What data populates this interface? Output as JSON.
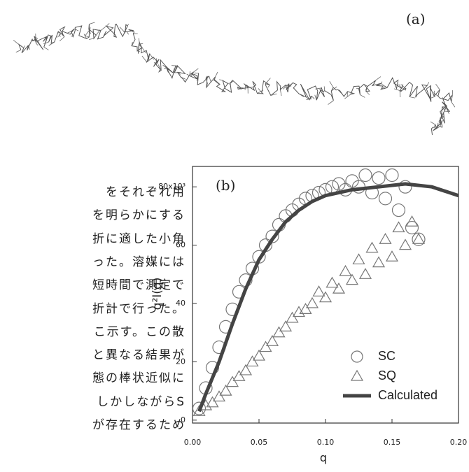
{
  "figure": {
    "panel_a": "(a)"
  },
  "text_lines": [
    "をそれぞれ用",
    "を明らかにする",
    "折に適した小角",
    "った。溶媒には",
    "短時間で測定で",
    "折計で行った。",
    "こ示す。この散",
    "と異なる結果が",
    "態の棒状近似に",
    "しかしながらS",
    "が存在するため"
  ],
  "chart_data": {
    "type": "scatter",
    "panel_label": "(b)",
    "x_label": "q",
    "y_label": "q²I(q)",
    "xlim": [
      0,
      0.2
    ],
    "ylim": [
      -1,
      87
    ],
    "xticks": [
      {
        "value": 0,
        "label": "0.00"
      },
      0.05,
      {
        "value": 0.1,
        "label": "0.10"
      },
      0.15,
      {
        "value": 0.2,
        "label": "0.20"
      }
    ],
    "yticks": [
      0,
      20,
      40,
      60,
      {
        "value": 80,
        "label": "80x10³"
      }
    ],
    "legend": "lower right",
    "series": [
      {
        "name": "SC",
        "marker": "circle",
        "color": "#777",
        "x": [
          0.005,
          0.01,
          0.015,
          0.02,
          0.025,
          0.03,
          0.035,
          0.04,
          0.045,
          0.05,
          0.055,
          0.06,
          0.065,
          0.07,
          0.075,
          0.08,
          0.085,
          0.09,
          0.095,
          0.1,
          0.105,
          0.11,
          0.115,
          0.12,
          0.125,
          0.13,
          0.135,
          0.14,
          0.145,
          0.15,
          0.155,
          0.16,
          0.165,
          0.17
        ],
        "values": [
          4,
          11,
          18,
          25,
          32,
          38,
          44,
          48,
          52,
          56,
          60,
          63,
          67,
          70,
          72,
          74,
          76,
          77,
          78,
          79,
          80,
          81,
          79,
          82,
          80,
          84,
          78,
          83,
          76,
          84,
          72,
          80,
          66,
          62
        ]
      },
      {
        "name": "SQ",
        "marker": "triangle",
        "color": "#777",
        "x": [
          0.005,
          0.01,
          0.015,
          0.02,
          0.025,
          0.03,
          0.035,
          0.04,
          0.045,
          0.05,
          0.055,
          0.06,
          0.065,
          0.07,
          0.075,
          0.08,
          0.085,
          0.09,
          0.095,
          0.1,
          0.105,
          0.11,
          0.115,
          0.12,
          0.125,
          0.13,
          0.135,
          0.14,
          0.145,
          0.15,
          0.155,
          0.16,
          0.165,
          0.17
        ],
        "values": [
          3,
          5,
          6,
          8,
          10,
          13,
          15,
          17,
          20,
          22,
          25,
          27,
          30,
          32,
          35,
          37,
          38,
          40,
          44,
          42,
          47,
          45,
          51,
          48,
          55,
          50,
          59,
          54,
          62,
          56,
          66,
          60,
          68,
          62
        ]
      },
      {
        "name": "Calculated",
        "marker": "line",
        "color": "#444",
        "x": [
          0.005,
          0.01,
          0.02,
          0.03,
          0.04,
          0.05,
          0.06,
          0.07,
          0.08,
          0.09,
          0.1,
          0.12,
          0.14,
          0.16,
          0.18,
          0.2
        ],
        "values": [
          3,
          9,
          20,
          33,
          45,
          55,
          62,
          68,
          72,
          75,
          77,
          79,
          80,
          81,
          80,
          77
        ]
      }
    ]
  }
}
